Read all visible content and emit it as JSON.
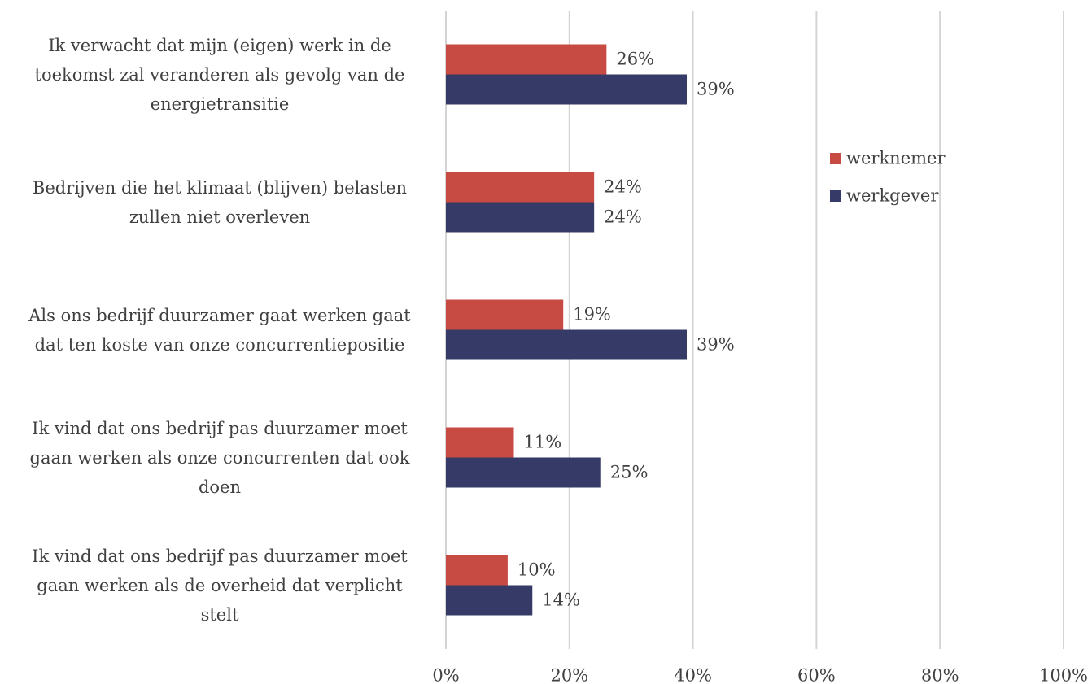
{
  "chart_data": {
    "type": "barh",
    "categories": [
      "Ik verwacht dat mijn (eigen) werk in de\ntoekomst zal veranderen als gevolg van de\nenergietransitie",
      "Bedrijven die het klimaat (blijven) belasten\nzullen niet overleven",
      "Als ons bedrijf duurzamer gaat werken gaat\ndat ten koste van onze concurrentiepositie",
      "Ik vind dat ons bedrijf pas duurzamer moet\ngaan werken als onze concurrenten dat ook\ndoen",
      "Ik vind dat ons bedrijf pas duurzamer moet\ngaan werken als de overheid dat verplicht\nstelt"
    ],
    "series": [
      {
        "name": "werknemer",
        "color": "#c84b43",
        "values": [
          26,
          24,
          19,
          11,
          10
        ],
        "value_labels": [
          "26%",
          "24%",
          "19%",
          "11%",
          "10%"
        ]
      },
      {
        "name": "werkgever",
        "color": "#363a66",
        "values": [
          39,
          24,
          39,
          25,
          14
        ],
        "value_labels": [
          "39%",
          "24%",
          "39%",
          "25%",
          "14%"
        ]
      }
    ],
    "xlim": [
      0,
      100
    ],
    "xticks": [
      {
        "value": 0,
        "label": "0%"
      },
      {
        "value": 20,
        "label": "20%"
      },
      {
        "value": 40,
        "label": "40%"
      },
      {
        "value": 60,
        "label": "60%"
      },
      {
        "value": 80,
        "label": "80%"
      },
      {
        "value": 100,
        "label": "100%"
      }
    ],
    "grid": true,
    "legend": "right"
  }
}
